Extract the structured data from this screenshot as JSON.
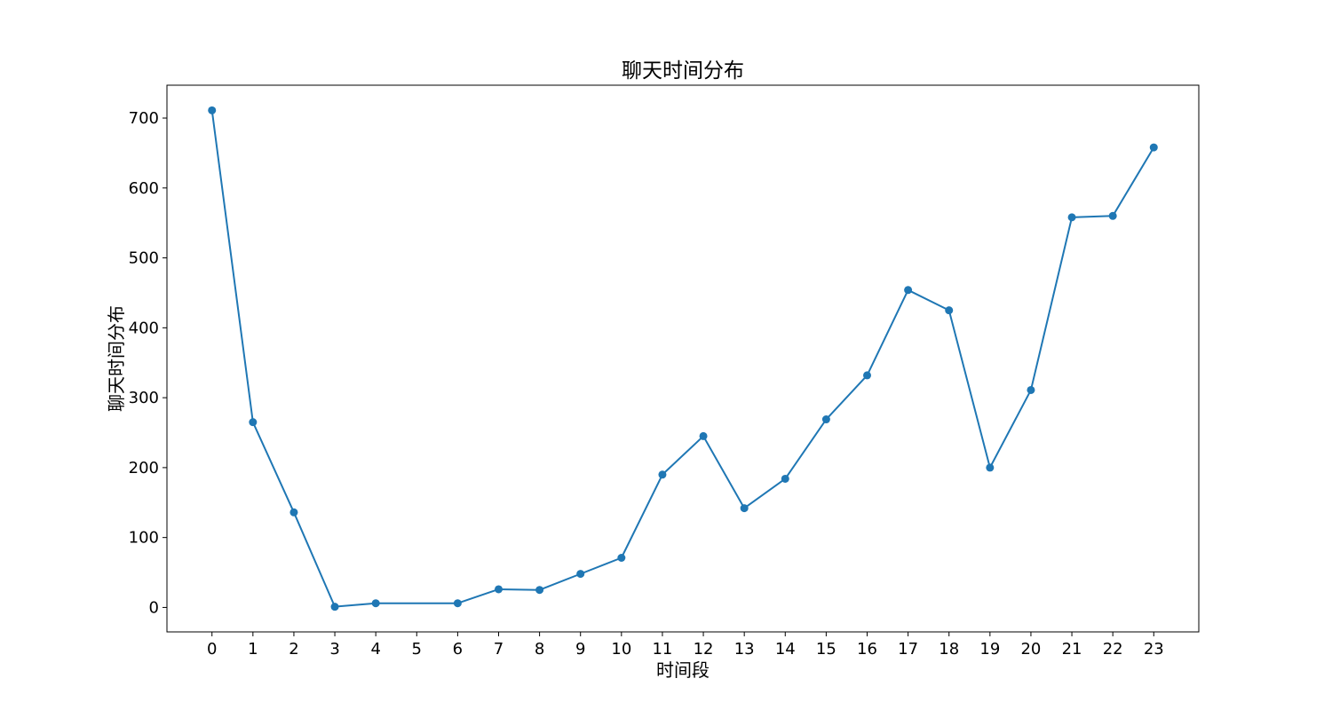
{
  "chart_data": {
    "type": "line",
    "title": "聊天时间分布",
    "xlabel": "时间段",
    "ylabel": "聊天时间分布",
    "x": [
      0,
      1,
      2,
      3,
      4,
      6,
      7,
      8,
      9,
      10,
      11,
      12,
      13,
      14,
      15,
      16,
      17,
      18,
      19,
      20,
      21,
      22,
      23
    ],
    "x_ticks": [
      0,
      1,
      2,
      3,
      4,
      5,
      6,
      7,
      8,
      9,
      10,
      11,
      12,
      13,
      14,
      15,
      16,
      17,
      18,
      19,
      20,
      21,
      22,
      23
    ],
    "series": [
      {
        "values": [
          711,
          265,
          136,
          1,
          6,
          6,
          26,
          25,
          48,
          71,
          190,
          245,
          142,
          184,
          269,
          332,
          454,
          425,
          200,
          311,
          558,
          560,
          658
        ]
      }
    ],
    "xlim": [
      -1.1,
      24.1
    ],
    "ylim": [
      -35,
      747
    ],
    "y_ticks": [
      0,
      100,
      200,
      300,
      400,
      500,
      600,
      700
    ],
    "grid": false,
    "legend": "none",
    "colors": {
      "line": "#1f77b4",
      "marker": "#1f77b4",
      "frame": "#000000",
      "background": "#ffffff"
    }
  }
}
